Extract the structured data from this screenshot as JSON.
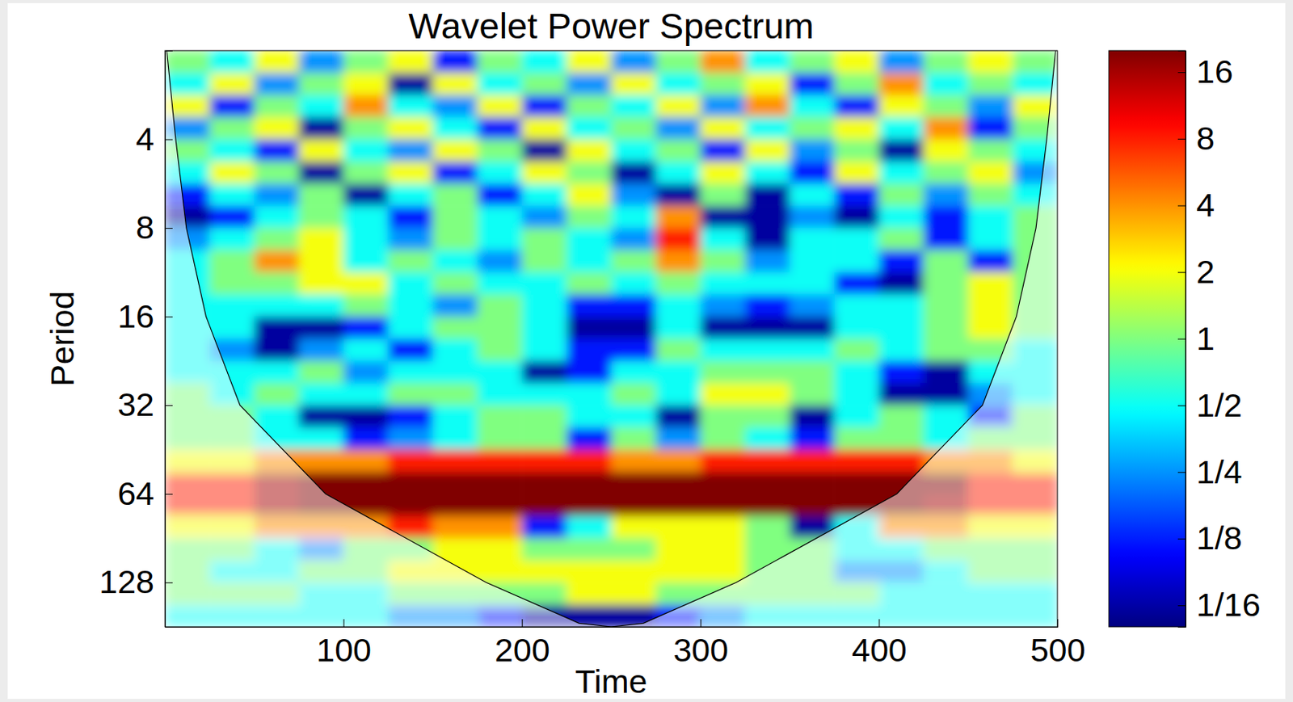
{
  "chart_data": {
    "type": "heatmap",
    "title": "Wavelet Power Spectrum",
    "xlabel": "Time",
    "ylabel": "Period",
    "log": "y",
    "xlim": [
      0,
      500
    ],
    "xticks": [
      100,
      200,
      300,
      400,
      500
    ],
    "ylim": [
      2,
      181.02
    ],
    "yticks": [
      4,
      8,
      16,
      32,
      64,
      128
    ],
    "time_edges": [
      0,
      25,
      50,
      75,
      100,
      125,
      150,
      175,
      200,
      225,
      250,
      275,
      300,
      325,
      350,
      375,
      400,
      425,
      450,
      475,
      500
    ],
    "period_edges": [
      2,
      2.38,
      2.83,
      3.36,
      4,
      4.76,
      5.66,
      6.73,
      8,
      9.51,
      11.31,
      13.45,
      16,
      19.03,
      22.63,
      26.91,
      32,
      38.05,
      45.25,
      53.82,
      64,
      76.11,
      90.51,
      107.63,
      128,
      152.22,
      181.02
    ],
    "z": [
      [
        1,
        0.5,
        2,
        0.25,
        1,
        2,
        0.12,
        1,
        0.5,
        2,
        0.25,
        1,
        4,
        0.5,
        1,
        2,
        0.25,
        1,
        2,
        1
      ],
      [
        0.5,
        2,
        0.25,
        1,
        2,
        0.06,
        2,
        0.5,
        1,
        0.25,
        2,
        0.5,
        1,
        2,
        0.12,
        1,
        4,
        0.5,
        1,
        0.5
      ],
      [
        2,
        0.12,
        1,
        0.5,
        4,
        0.5,
        0.25,
        2,
        0.12,
        1,
        0.5,
        2,
        0.25,
        4,
        0.5,
        0.12,
        2,
        1,
        0.25,
        2
      ],
      [
        0.25,
        1,
        2,
        0.06,
        1,
        2,
        0.5,
        0.12,
        2,
        0.5,
        1,
        0.25,
        2,
        0.5,
        1,
        2,
        0.5,
        4,
        0.12,
        1
      ],
      [
        1,
        0.5,
        0.12,
        2,
        0.5,
        0.25,
        2,
        1,
        0.06,
        2,
        0.5,
        1,
        0.12,
        2,
        0.25,
        1,
        0.06,
        2,
        1,
        0.5
      ],
      [
        0.5,
        2,
        1,
        0.06,
        1,
        2,
        0.12,
        0.5,
        2,
        1,
        0.06,
        0.5,
        2,
        0.5,
        0.12,
        2,
        0.5,
        1,
        2,
        0.25
      ],
      [
        0.12,
        0.5,
        0.25,
        1,
        0.06,
        0.5,
        1,
        0.12,
        0.5,
        2,
        0.25,
        0.06,
        1,
        0.06,
        0.5,
        0.12,
        1,
        0.25,
        1,
        0.5
      ],
      [
        0.06,
        0.12,
        0.5,
        1,
        0.5,
        0.12,
        1,
        0.5,
        0.25,
        1,
        0.5,
        4,
        0.06,
        0.06,
        0.25,
        0.06,
        0.5,
        0.12,
        0.5,
        1
      ],
      [
        0.25,
        0.5,
        1,
        2,
        0.5,
        0.25,
        1,
        0.5,
        1,
        0.5,
        0.25,
        8,
        0.5,
        0.06,
        0.5,
        0.5,
        1,
        0.12,
        0.5,
        1
      ],
      [
        0.5,
        1,
        4,
        2,
        0.5,
        1,
        0.5,
        0.25,
        1,
        0.5,
        1,
        4,
        1,
        0.25,
        0.5,
        0.5,
        0.12,
        1,
        0.12,
        1
      ],
      [
        0.5,
        1,
        1,
        2,
        2,
        0.5,
        1,
        0.5,
        0.5,
        1,
        0.5,
        1,
        0.5,
        0.5,
        0.5,
        0.12,
        0.06,
        1,
        2,
        1
      ],
      [
        0.5,
        0.5,
        0.5,
        0.5,
        1,
        0.5,
        0.25,
        1,
        0.5,
        0.12,
        0.12,
        0.5,
        0.25,
        0.12,
        0.25,
        0.5,
        0.5,
        1,
        2,
        1
      ],
      [
        0.5,
        0.5,
        0.06,
        0.06,
        0.12,
        0.5,
        1,
        1,
        0.5,
        0.06,
        0.06,
        0.5,
        0.06,
        0.06,
        0.06,
        0.5,
        0.5,
        1,
        2,
        1
      ],
      [
        0.5,
        0.25,
        0.06,
        0.25,
        0.5,
        0.12,
        0.5,
        1,
        0.5,
        0.12,
        0.12,
        1,
        0.5,
        0.5,
        0.5,
        1,
        0.5,
        1,
        1,
        0.5
      ],
      [
        0.5,
        0.5,
        0.5,
        1,
        0.25,
        0.5,
        0.5,
        0.5,
        0.06,
        0.12,
        0.5,
        0.5,
        1,
        1,
        1,
        0.5,
        0.12,
        0.06,
        0.5,
        0.5
      ],
      [
        1,
        0.5,
        1,
        0.5,
        0.5,
        1,
        1,
        0.5,
        0.5,
        0.5,
        1,
        0.5,
        2,
        2,
        1,
        0.5,
        0.06,
        0.06,
        0.25,
        0.5
      ],
      [
        1,
        1,
        0.5,
        0.06,
        0.06,
        0.12,
        0.5,
        1,
        1,
        0.5,
        0.5,
        0.06,
        1,
        1,
        0.06,
        0.5,
        1,
        0.5,
        0.12,
        1
      ],
      [
        1,
        1,
        0.5,
        0.5,
        0.12,
        0.25,
        0.5,
        1,
        1,
        0.12,
        1,
        0.25,
        1,
        0.5,
        0.12,
        1,
        1,
        0.5,
        1,
        1
      ],
      [
        2,
        2,
        4,
        4,
        4,
        8,
        8,
        8,
        8,
        8,
        4,
        4,
        8,
        8,
        8,
        8,
        8,
        4,
        4,
        2
      ],
      [
        8,
        8,
        16,
        20,
        20,
        20,
        20,
        20,
        20,
        20,
        20,
        20,
        20,
        20,
        20,
        20,
        20,
        20,
        8,
        8
      ],
      [
        8,
        8,
        16,
        20,
        20,
        20,
        20,
        20,
        20,
        20,
        20,
        20,
        20,
        20,
        20,
        20,
        20,
        16,
        8,
        8
      ],
      [
        2,
        2,
        4,
        4,
        4,
        8,
        4,
        4,
        0.12,
        0.5,
        2,
        2,
        2,
        1,
        0.06,
        0.5,
        4,
        4,
        2,
        2
      ],
      [
        1,
        1,
        0.5,
        0.25,
        1,
        1,
        2,
        2,
        1,
        1,
        1,
        2,
        2,
        1,
        1,
        0.5,
        0.5,
        1,
        1,
        1
      ],
      [
        1,
        0.5,
        0.5,
        1,
        1,
        2,
        2,
        2,
        2,
        2,
        2,
        2,
        2,
        1,
        1,
        0.25,
        0.25,
        0.5,
        1,
        1
      ],
      [
        1,
        1,
        1,
        0.5,
        0.5,
        1,
        1,
        1,
        1,
        2,
        2,
        1,
        1,
        1,
        1,
        1,
        0.5,
        0.5,
        0.5,
        0.5
      ],
      [
        0.5,
        0.5,
        0.5,
        0.5,
        0.5,
        0.25,
        0.25,
        0.12,
        0.06,
        0.06,
        0.06,
        0.12,
        0.25,
        0.5,
        0.5,
        0.5,
        0.5,
        0.5,
        0.5,
        0.5
      ]
    ],
    "coi": {
      "time": [
        1,
        6,
        12,
        23,
        42,
        90,
        180,
        232,
        250,
        268,
        320,
        410,
        458,
        477,
        488,
        494,
        499
      ],
      "period": [
        2,
        4,
        8,
        16,
        32,
        64,
        128,
        176,
        181.02,
        176,
        128,
        64,
        32,
        16,
        8,
        4,
        2
      ]
    },
    "colorbar": {
      "log": true,
      "range": [
        0.05,
        20
      ],
      "ticks": [
        16,
        8,
        4,
        2,
        1,
        {
          "value": 0.5,
          "label": "1/2"
        },
        {
          "value": 0.25,
          "label": "1/4"
        },
        {
          "value": 0.125,
          "label": "1/8"
        },
        {
          "value": 0.0625,
          "label": "1/16"
        }
      ]
    }
  }
}
